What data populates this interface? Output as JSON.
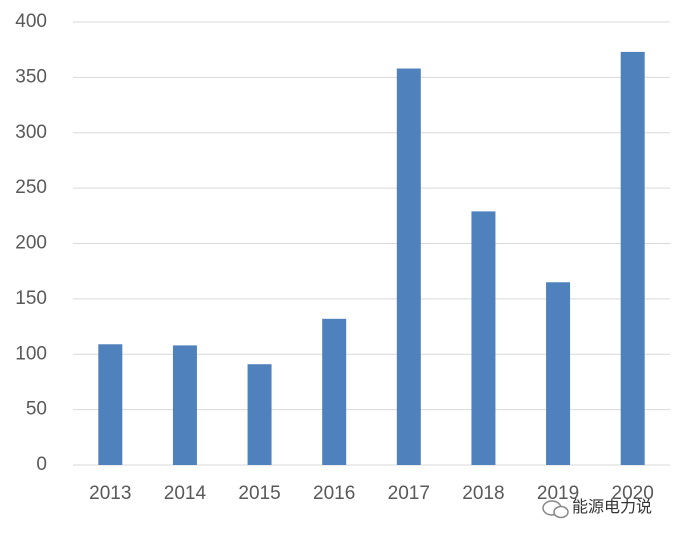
{
  "chart_data": {
    "type": "bar",
    "categories": [
      "2013",
      "2014",
      "2015",
      "2016",
      "2017",
      "2018",
      "2019",
      "2020"
    ],
    "values": [
      109,
      108,
      91,
      132,
      358,
      229,
      165,
      373
    ],
    "color": "#4f81bd",
    "ylim": [
      0,
      400
    ],
    "yticks": [
      0,
      50,
      100,
      150,
      200,
      250,
      300,
      350,
      400
    ],
    "grid": true,
    "watermark": "能源电力说"
  }
}
